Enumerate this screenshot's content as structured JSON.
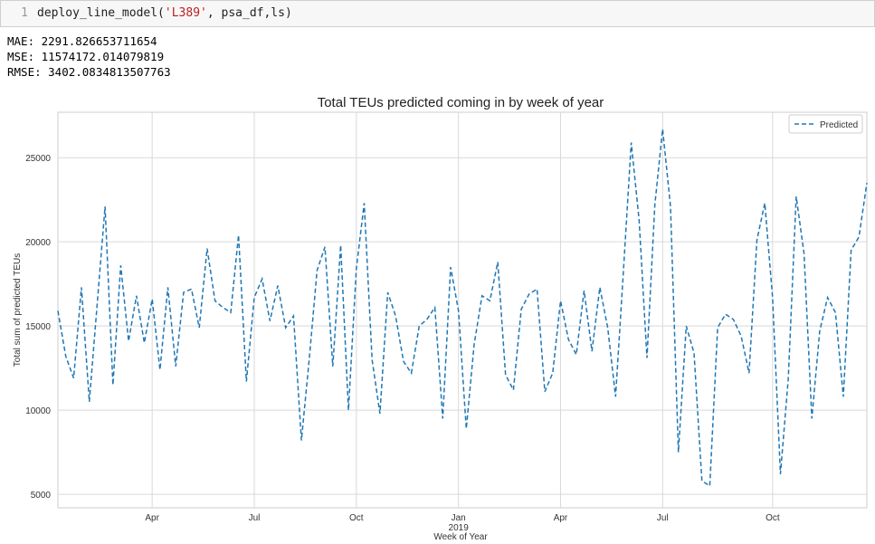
{
  "code_cell": {
    "line_number": "1",
    "code_before": "deploy_line_model(",
    "code_string": "'L389'",
    "code_after": ", psa_df,ls)"
  },
  "output_lines": [
    "MAE: 2291.826653711654",
    "MSE: 11574172.014079819",
    "RMSE: 3402.0834813507763"
  ],
  "chart_data": {
    "type": "line",
    "title": "Total TEUs predicted coming in by week of year",
    "xlabel": "Week of Year",
    "ylabel": "Total sum of predicted TEUs",
    "x_ticks": [
      "Apr",
      "Jul",
      "Oct",
      "Jan\n2019",
      "Apr",
      "Jul",
      "Oct"
    ],
    "y_ticks": [
      5000,
      10000,
      15000,
      20000,
      25000
    ],
    "ylim": [
      4200,
      27700
    ],
    "grid": true,
    "legend": "top-right",
    "series": [
      {
        "name": "Predicted",
        "color": "#1f77b4",
        "style": "dashed",
        "values": [
          15900,
          13200,
          11900,
          17300,
          10500,
          16300,
          22100,
          11500,
          18600,
          14100,
          16800,
          14000,
          16600,
          12400,
          17300,
          12600,
          17000,
          17200,
          14900,
          19600,
          16500,
          16100,
          15800,
          20400,
          11700,
          16700,
          17800,
          15300,
          17400,
          14900,
          15600,
          8200,
          13000,
          18300,
          19700,
          12600,
          19800,
          10000,
          18400,
          22300,
          13000,
          9800,
          17000,
          15600,
          12900,
          12200,
          15000,
          15400,
          16100,
          9500,
          18500,
          15900,
          8900,
          13900,
          16800,
          16500,
          18800,
          12100,
          11200,
          16000,
          16900,
          17200,
          11100,
          12200,
          16500,
          14200,
          13300,
          17100,
          13500,
          17300,
          14900,
          10800,
          18200,
          25900,
          21300,
          13100,
          22200,
          26700,
          22100,
          7500,
          15000,
          13400,
          5800,
          5500,
          14900,
          15700,
          15400,
          14400,
          12200,
          20100,
          22300,
          16700,
          6200,
          11900,
          22700,
          19300,
          9500,
          14700,
          16700,
          15800,
          10800,
          19500,
          20300,
          23500
        ]
      }
    ]
  }
}
